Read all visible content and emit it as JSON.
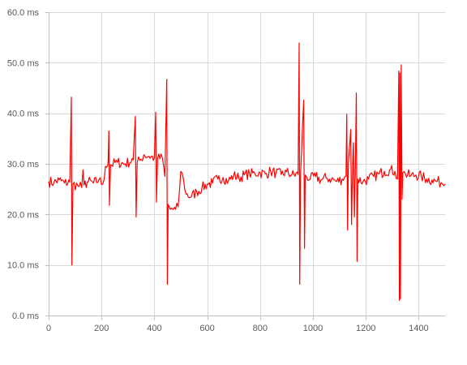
{
  "chart_data": {
    "type": "line",
    "title": "",
    "xlabel": "",
    "ylabel": "",
    "xlim": [
      0,
      1500
    ],
    "ylim": [
      0,
      60
    ],
    "x_ticks": [
      0,
      200,
      400,
      600,
      800,
      1000,
      1200,
      1400
    ],
    "y_ticks": [
      0,
      10,
      20,
      30,
      40,
      50,
      60
    ],
    "y_tick_labels": [
      "0.0 ms",
      "10.0 ms",
      "20.0 ms",
      "30.0 ms",
      "40.0 ms",
      "50.0 ms",
      "60.0 ms"
    ],
    "grid": true,
    "legend": "none",
    "series_color": "#ff0000",
    "grid_color": "#d9d9d9",
    "series": [
      {
        "name": "",
        "points": [
          [
            0,
            26.5
          ],
          [
            20,
            26.3
          ],
          [
            40,
            26.8
          ],
          [
            60,
            26.2
          ],
          [
            80,
            26.4
          ],
          [
            86,
            43.2
          ],
          [
            88,
            10.0
          ],
          [
            92,
            26.0
          ],
          [
            110,
            25.7
          ],
          [
            125,
            25.3
          ],
          [
            130,
            28.8
          ],
          [
            134,
            25.8
          ],
          [
            150,
            26.5
          ],
          [
            170,
            26.2
          ],
          [
            190,
            26.8
          ],
          [
            205,
            26.0
          ],
          [
            215,
            29.5
          ],
          [
            225,
            30.0
          ],
          [
            228,
            36.5
          ],
          [
            230,
            21.8
          ],
          [
            234,
            29.8
          ],
          [
            260,
            30.3
          ],
          [
            290,
            30.0
          ],
          [
            320,
            30.8
          ],
          [
            328,
            39.4
          ],
          [
            331,
            19.5
          ],
          [
            335,
            30.2
          ],
          [
            350,
            30.9
          ],
          [
            360,
            31.8
          ],
          [
            380,
            31.5
          ],
          [
            400,
            31.2
          ],
          [
            405,
            40.2
          ],
          [
            408,
            22.4
          ],
          [
            412,
            31.0
          ],
          [
            430,
            31.2
          ],
          [
            440,
            27.5
          ],
          [
            447,
            46.7
          ],
          [
            449,
            6.2
          ],
          [
            452,
            22.0
          ],
          [
            460,
            21.0
          ],
          [
            480,
            21.0
          ],
          [
            490,
            21.5
          ],
          [
            500,
            28.5
          ],
          [
            510,
            27.0
          ],
          [
            520,
            24.0
          ],
          [
            540,
            23.5
          ],
          [
            560,
            24.5
          ],
          [
            580,
            25.2
          ],
          [
            600,
            26.0
          ],
          [
            620,
            26.2
          ],
          [
            640,
            27.0
          ],
          [
            660,
            27.3
          ],
          [
            680,
            26.6
          ],
          [
            700,
            27.7
          ],
          [
            720,
            27.2
          ],
          [
            740,
            27.8
          ],
          [
            760,
            28.0
          ],
          [
            780,
            28.1
          ],
          [
            800,
            28.3
          ],
          [
            820,
            28.0
          ],
          [
            840,
            28.5
          ],
          [
            860,
            28.2
          ],
          [
            880,
            27.9
          ],
          [
            900,
            28.4
          ],
          [
            920,
            27.8
          ],
          [
            944,
            27.9
          ],
          [
            948,
            53.9
          ],
          [
            950,
            6.2
          ],
          [
            953,
            28.0
          ],
          [
            965,
            42.6
          ],
          [
            968,
            13.3
          ],
          [
            971,
            27.8
          ],
          [
            990,
            27.0
          ],
          [
            1010,
            27.5
          ],
          [
            1030,
            26.8
          ],
          [
            1050,
            27.2
          ],
          [
            1070,
            27.0
          ],
          [
            1090,
            26.5
          ],
          [
            1110,
            27.0
          ],
          [
            1125,
            27.5
          ],
          [
            1128,
            39.8
          ],
          [
            1131,
            16.9
          ],
          [
            1134,
            30.0
          ],
          [
            1143,
            36.8
          ],
          [
            1146,
            18.0
          ],
          [
            1150,
            29.5
          ],
          [
            1153,
            34.2
          ],
          [
            1157,
            19.5
          ],
          [
            1160,
            28.0
          ],
          [
            1164,
            44.0
          ],
          [
            1167,
            10.7
          ],
          [
            1170,
            27.0
          ],
          [
            1190,
            26.5
          ],
          [
            1210,
            27.0
          ],
          [
            1230,
            27.5
          ],
          [
            1250,
            28.0
          ],
          [
            1270,
            28.5
          ],
          [
            1290,
            28.8
          ],
          [
            1310,
            28.5
          ],
          [
            1320,
            27.0
          ],
          [
            1325,
            48.4
          ],
          [
            1327,
            3.0
          ],
          [
            1329,
            48.0
          ],
          [
            1331,
            3.3
          ],
          [
            1334,
            49.6
          ],
          [
            1337,
            23.0
          ],
          [
            1340,
            28.2
          ],
          [
            1350,
            28.0
          ],
          [
            1370,
            27.6
          ],
          [
            1390,
            27.8
          ],
          [
            1410,
            27.5
          ],
          [
            1430,
            27.0
          ],
          [
            1450,
            26.8
          ],
          [
            1470,
            26.5
          ],
          [
            1485,
            26.3
          ],
          [
            1500,
            26.0
          ]
        ]
      }
    ]
  }
}
